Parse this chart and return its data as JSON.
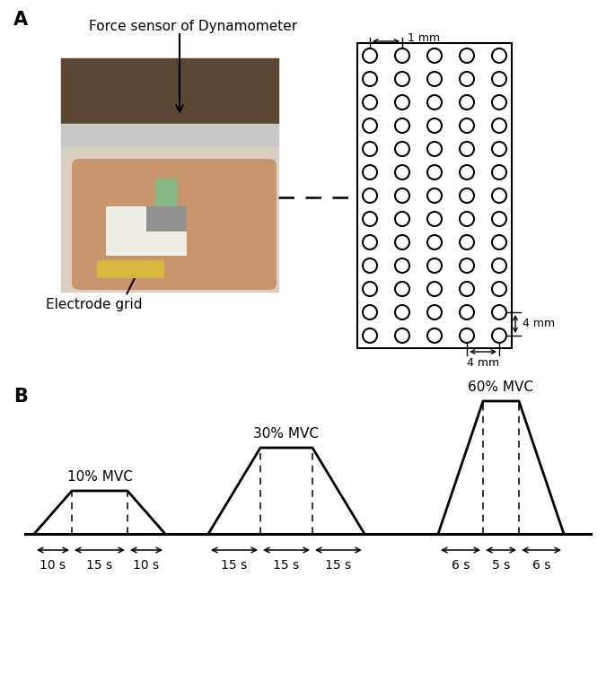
{
  "panel_A_label": "A",
  "panel_B_label": "B",
  "force_sensor_label": "Force sensor of Dynamometer",
  "electrode_label": "Electrode grid",
  "grid_rows": 13,
  "grid_cols": 5,
  "dim_4mm_horiz": "4 mm",
  "dim_4mm_vert": "4 mm",
  "dim_1mm": "1 mm",
  "background_color": "#ffffff",
  "line_color": "#000000",
  "photo_placeholder_color": "#aaaaaa",
  "trap1_label": "10% MVC",
  "trap1_ramp_label_l": "10 s",
  "trap1_plat_label": "15 s",
  "trap1_ramp_label_r": "10 s",
  "trap2_label": "30% MVC",
  "trap2_ramp_label_l": "15 s",
  "trap2_plat_label": "15 s",
  "trap2_ramp_label_r": "15 s",
  "trap3_label": "60% MVC",
  "trap3_ramp_label_l": "6 s",
  "trap3_plat_label": "5 s",
  "trap3_ramp_label_r": "6 s"
}
